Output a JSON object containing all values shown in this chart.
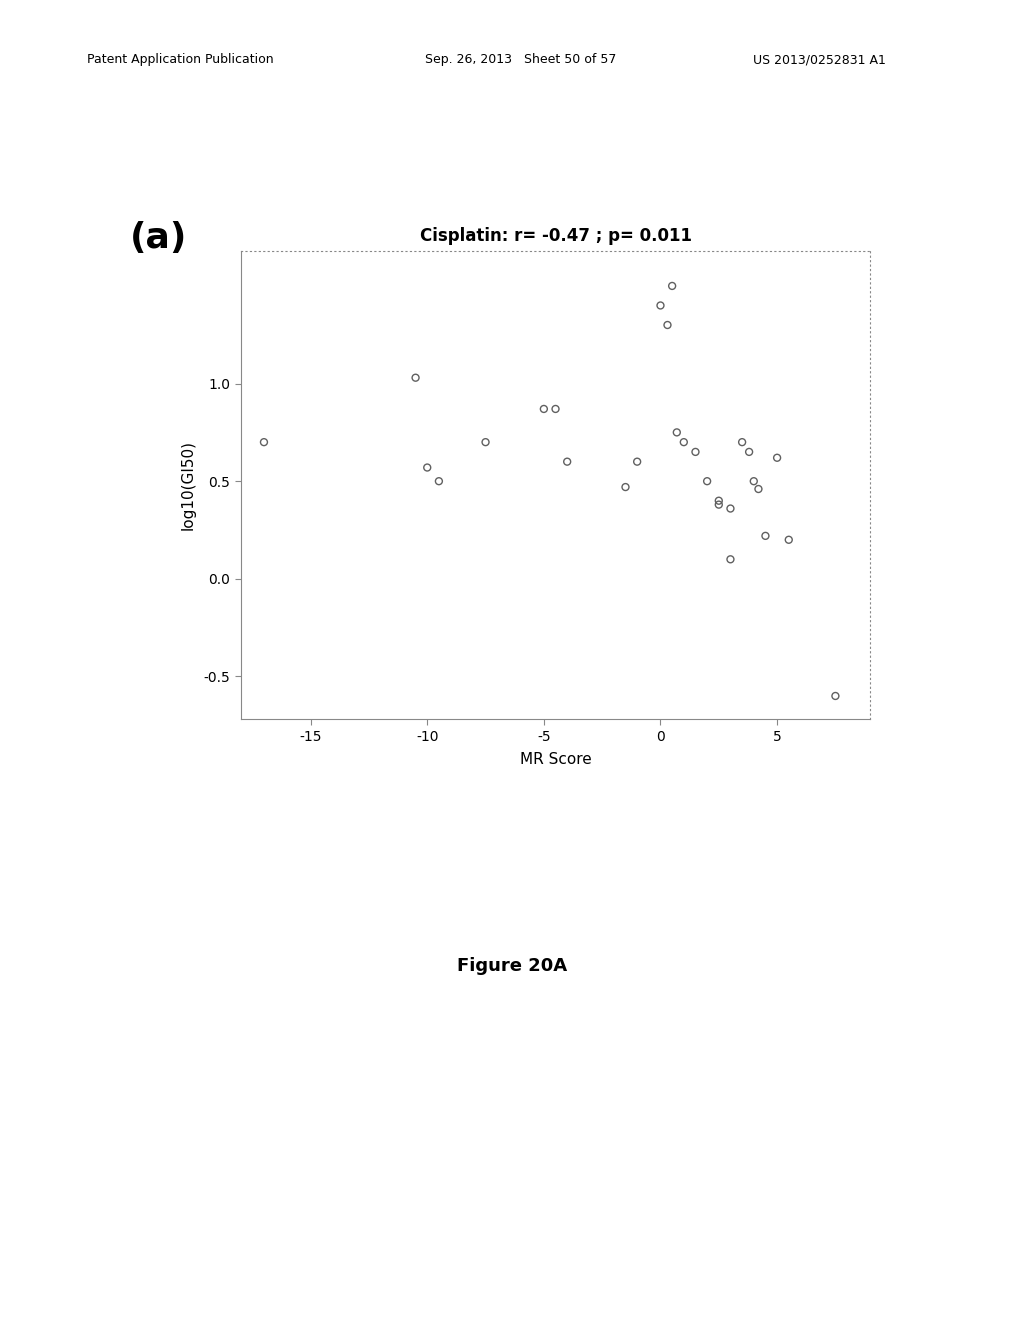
{
  "title": "Cisplatin: r= -0.47 ; p= 0.011",
  "xlabel": "MR Score",
  "ylabel": "log10(GI50)",
  "label_a": "(a)",
  "figure_label": "Figure 20A",
  "xlim": [
    -18,
    9
  ],
  "ylim": [
    -0.72,
    1.68
  ],
  "xticks": [
    -15,
    -10,
    -5,
    0,
    5
  ],
  "yticks": [
    -0.5,
    0.0,
    0.5,
    1.0
  ],
  "x_data": [
    -17,
    -10.5,
    -10,
    -9.5,
    -7.5,
    -5,
    -4.5,
    -4,
    -1.5,
    -1,
    0,
    0.5,
    0.3,
    0.7,
    1.0,
    1.5,
    2.0,
    2.5,
    2.5,
    3.0,
    3.0,
    3.5,
    3.8,
    4.0,
    4.2,
    4.5,
    5.0,
    5.5,
    7.5
  ],
  "y_data": [
    0.7,
    1.03,
    0.57,
    0.5,
    0.7,
    0.87,
    0.87,
    0.6,
    0.47,
    0.6,
    1.4,
    1.5,
    1.3,
    0.75,
    0.7,
    0.65,
    0.5,
    0.4,
    0.38,
    0.36,
    0.1,
    0.7,
    0.65,
    0.5,
    0.46,
    0.22,
    0.62,
    0.2,
    -0.6
  ],
  "marker_size": 5,
  "marker_color": "none",
  "marker_edge_color": "#606060",
  "marker_edge_width": 1.0,
  "background_color": "#ffffff",
  "plot_bg_color": "#ffffff",
  "title_fontsize": 12,
  "axis_label_fontsize": 11,
  "tick_fontsize": 10,
  "label_a_fontsize": 26,
  "figure_label_fontsize": 13,
  "header_fontsize": 9
}
